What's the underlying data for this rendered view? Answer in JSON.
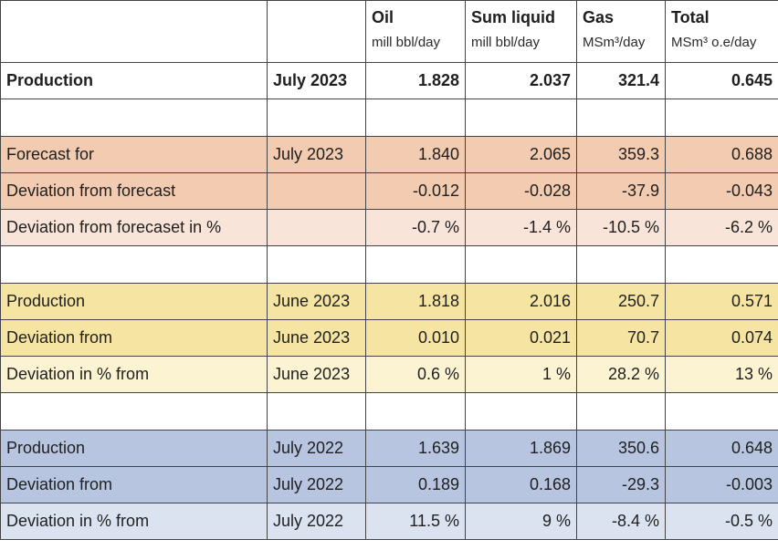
{
  "columns": [
    {
      "title": "",
      "unit": ""
    },
    {
      "title": "",
      "unit": ""
    },
    {
      "title": "Oil",
      "unit": "mill bbl/day"
    },
    {
      "title": "Sum liquid",
      "unit": "mill bbl/day"
    },
    {
      "title": "Gas",
      "unit": "MSm³/day"
    },
    {
      "title": "Total",
      "unit": "MSm³ o.e/day"
    }
  ],
  "rows": [
    {
      "label": "Production",
      "period": "July 2023",
      "oil": "1.828",
      "liquid": "2.037",
      "gas": "321.4",
      "total": "0.645"
    },
    {
      "label": "Forecast for",
      "period": "July 2023",
      "oil": "1.840",
      "liquid": "2.065",
      "gas": "359.3",
      "total": "0.688"
    },
    {
      "label": "Deviation from forecast",
      "period": "",
      "oil": "-0.012",
      "liquid": "-0.028",
      "gas": "-37.9",
      "total": "-0.043"
    },
    {
      "label": "Deviation from forecaset in %",
      "period": "",
      "oil": "-0.7 %",
      "liquid": "-1.4 %",
      "gas": "-10.5 %",
      "total": "-6.2 %"
    },
    {
      "label": "Production",
      "period": "June 2023",
      "oil": "1.818",
      "liquid": "2.016",
      "gas": "250.7",
      "total": "0.571"
    },
    {
      "label": "Deviation from",
      "period": "June 2023",
      "oil": "0.010",
      "liquid": "0.021",
      "gas": "70.7",
      "total": "0.074"
    },
    {
      "label": "Deviation in % from",
      "period": "June 2023",
      "oil": "0.6 %",
      "liquid": "1 %",
      "gas": "28.2 %",
      "total": "13 %"
    },
    {
      "label": "Production",
      "period": "July 2022",
      "oil": "1.639",
      "liquid": "1.869",
      "gas": "350.6",
      "total": "0.648"
    },
    {
      "label": "Deviation from",
      "period": "July 2022",
      "oil": "0.189",
      "liquid": "0.168",
      "gas": "-29.3",
      "total": "-0.003"
    },
    {
      "label": "Deviation in % from",
      "period": "July 2022",
      "oil": "11.5 %",
      "liquid": "9 %",
      "gas": "-8.4 %",
      "total": "-0.5 %"
    }
  ],
  "colors": {
    "forecast": "#f2cbb0",
    "forecast_light": "#f8e4d8",
    "june": "#f6e4a2",
    "june_light": "#fcf3d3",
    "july2022": "#b8c5e0",
    "july2022_light": "#dbe3f1"
  }
}
